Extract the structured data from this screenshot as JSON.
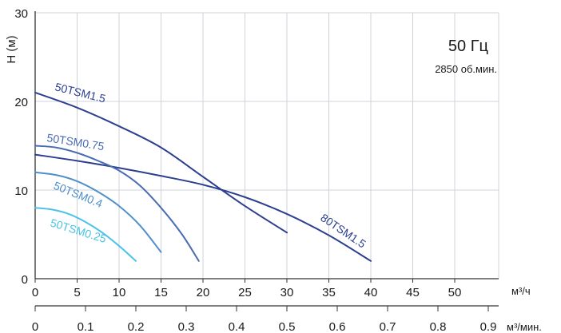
{
  "chart_data": {
    "type": "line",
    "ylabel": "H (м)",
    "ylim": [
      0,
      30
    ],
    "y_ticks": [
      "0",
      "10",
      "20",
      "30"
    ],
    "x_primary": {
      "unit": "м³/ч",
      "xlim": [
        0,
        55
      ],
      "ticks": [
        "0",
        "5",
        "10",
        "15",
        "20",
        "25",
        "30",
        "35",
        "40",
        "45",
        "50"
      ]
    },
    "x_secondary": {
      "unit": "м³/мин.",
      "ticks": [
        "0",
        "0.1",
        "0.2",
        "0.3",
        "0.4",
        "0.5",
        "0.6",
        "0.7",
        "0.8",
        "0.9"
      ]
    },
    "grid": true,
    "annotation": {
      "frequency": "50 Гц",
      "speed": "2850 об.мин."
    },
    "series": [
      {
        "name": "50TSM1.5",
        "color": "#2d3f8f",
        "x": [
          0,
          5,
          10,
          15,
          20,
          25,
          30
        ],
        "y": [
          21,
          19.3,
          17.2,
          14.8,
          11.5,
          8.2,
          5.2
        ]
      },
      {
        "name": "80TSM1.5",
        "color": "#2d3f8f",
        "x": [
          0,
          5,
          10,
          15,
          20,
          25,
          30,
          35,
          40
        ],
        "y": [
          14,
          13.3,
          12.5,
          11.6,
          10.6,
          9.2,
          7.3,
          4.9,
          2
        ]
      },
      {
        "name": "50TSM0.75",
        "color": "#4a6cb3",
        "x": [
          0,
          2.5,
          5,
          7.5,
          10,
          12.5,
          15,
          17.5,
          19.5
        ],
        "y": [
          15,
          14.8,
          14.2,
          13.3,
          12.2,
          10.5,
          8,
          5,
          2
        ]
      },
      {
        "name": "50TSM0.4",
        "color": "#4f8fcc",
        "x": [
          0,
          2.5,
          5,
          7.5,
          10,
          12.5,
          15
        ],
        "y": [
          12,
          11.7,
          11,
          9.8,
          8.2,
          6,
          3
        ]
      },
      {
        "name": "50TSM0.25",
        "color": "#4cc3e6",
        "x": [
          0,
          2,
          4,
          6,
          8,
          10,
          12
        ],
        "y": [
          8,
          7.8,
          7.3,
          6.4,
          5.2,
          3.7,
          2
        ]
      }
    ]
  }
}
